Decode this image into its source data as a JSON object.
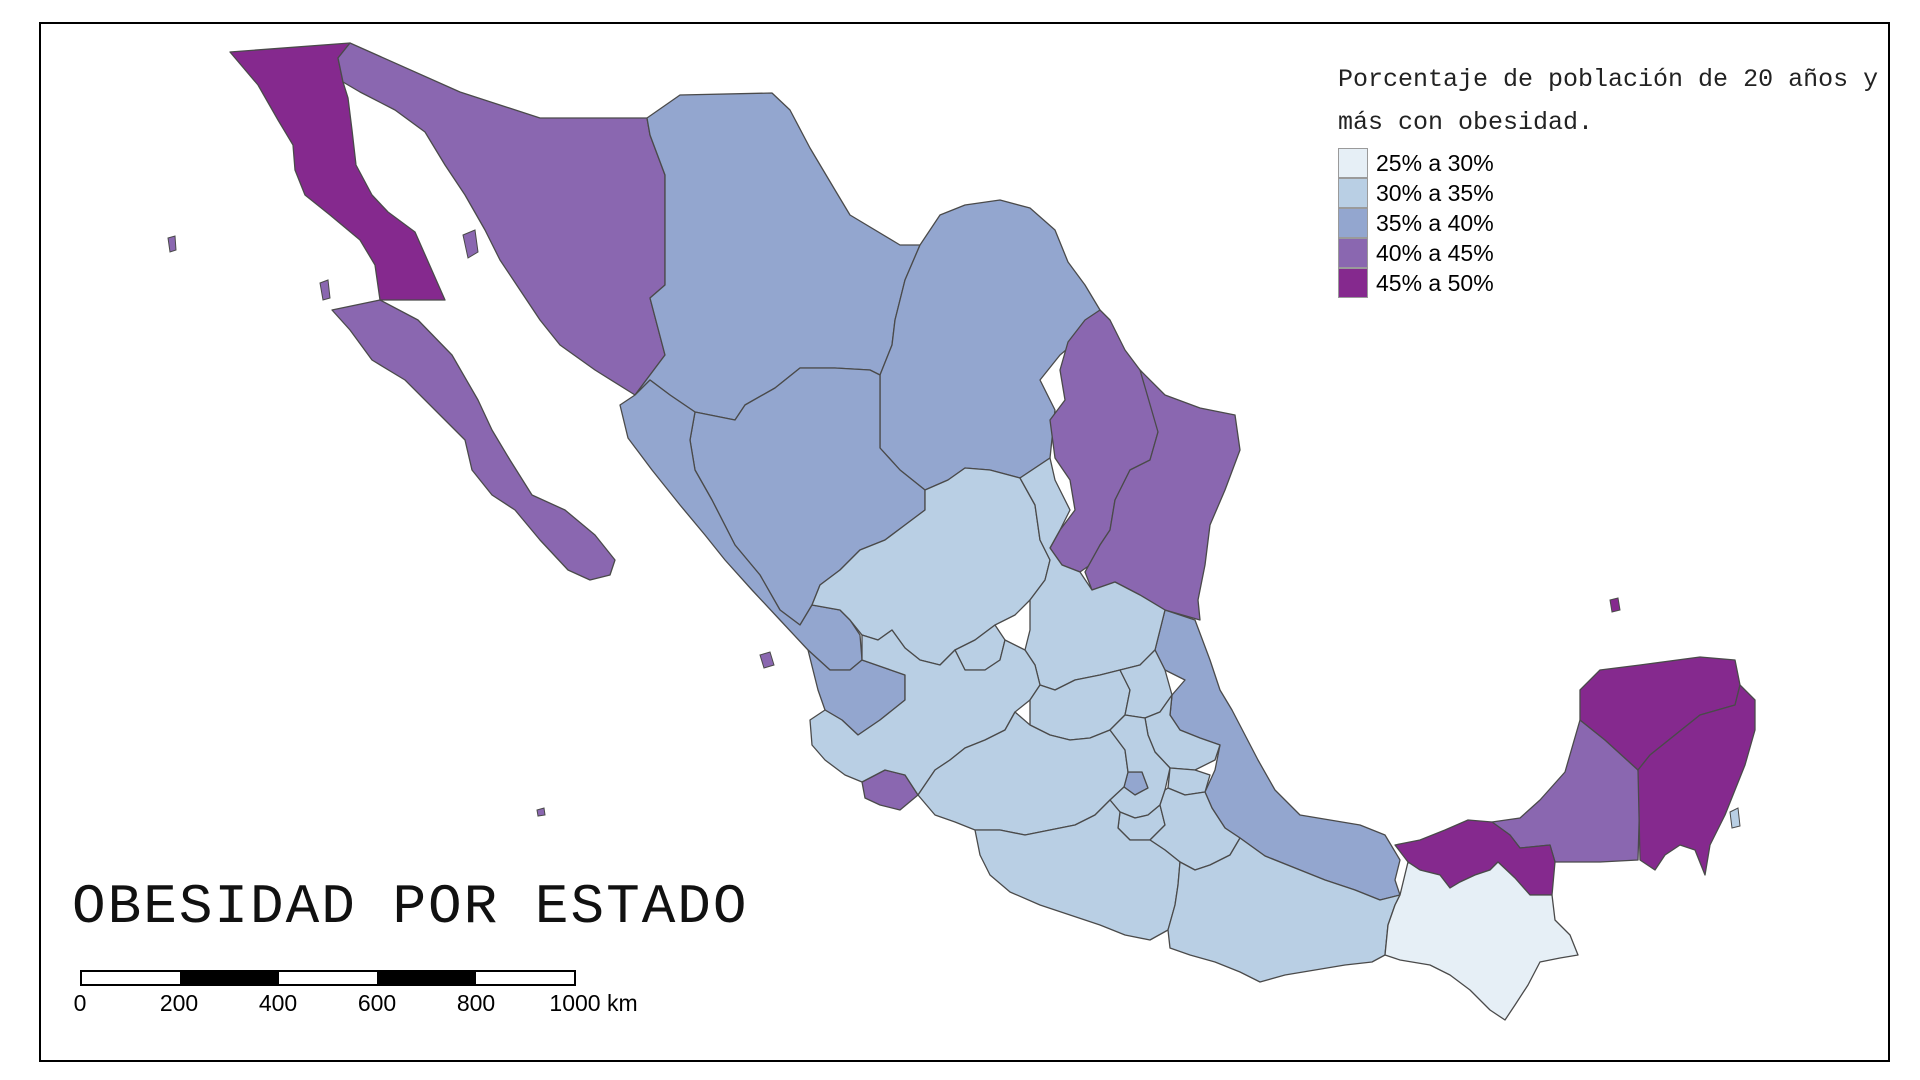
{
  "map": {
    "title": "OBESIDAD POR ESTADO",
    "legend": {
      "title": "Porcentaje de población de 20 años y más con obesidad.",
      "items": [
        {
          "label": "25% a 30%",
          "color": "#e6eff6"
        },
        {
          "label": "30% a 35%",
          "color": "#b9cfe4"
        },
        {
          "label": "35% a 40%",
          "color": "#93a6cf"
        },
        {
          "label": "40% a 45%",
          "color": "#8a67b0"
        },
        {
          "label": "45% a 50%",
          "color": "#85298e"
        }
      ]
    },
    "scale": {
      "ticks": [
        "0",
        "200",
        "400",
        "600",
        "800",
        "1000"
      ],
      "unit": "km"
    }
  }
}
